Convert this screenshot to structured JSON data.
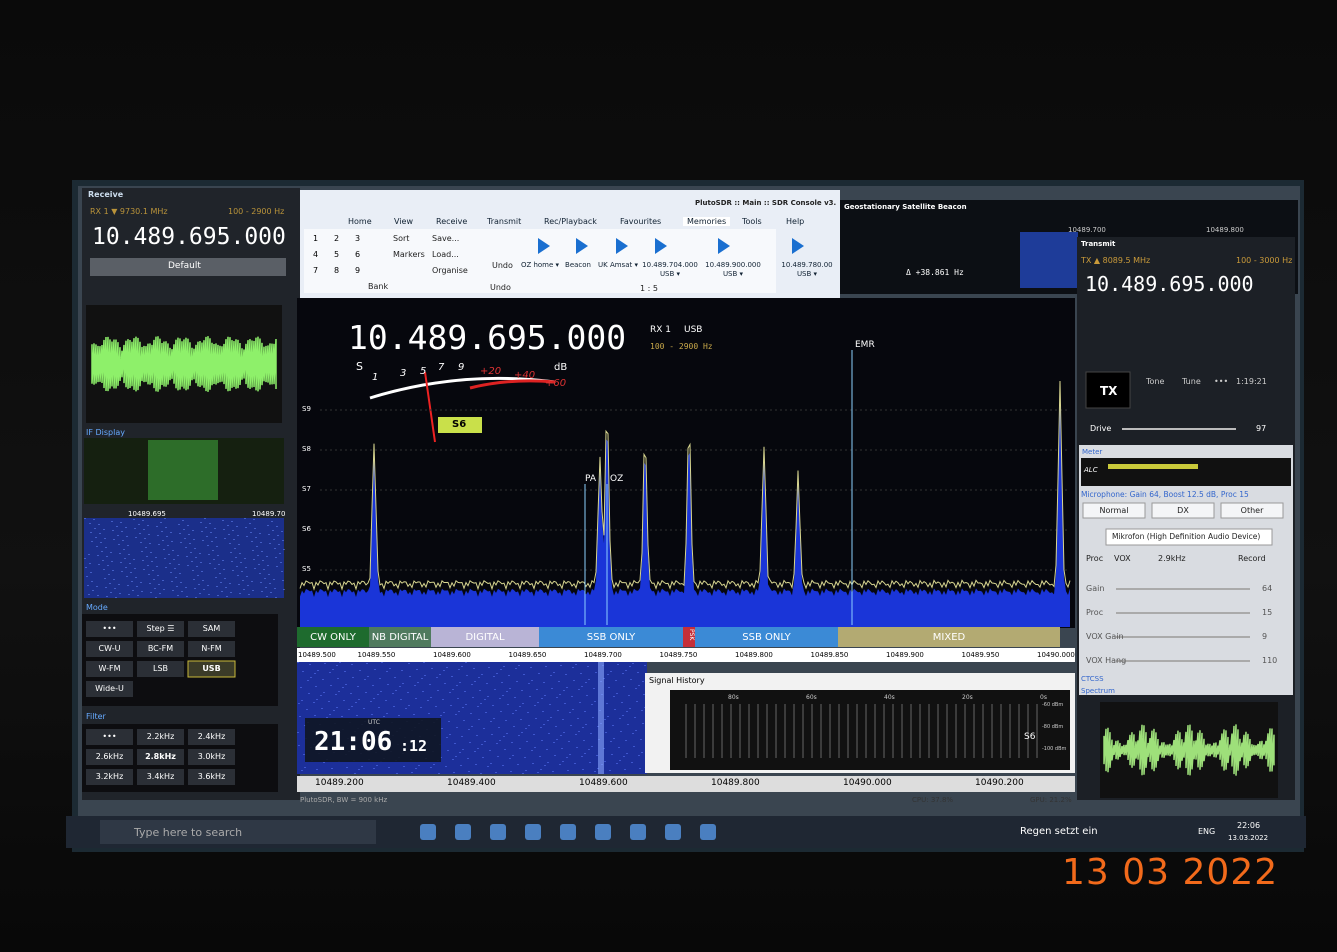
{
  "receive": {
    "title": "Receive",
    "rx": "RX 1 ▼ 9730.1 MHz",
    "bandwidth": "100 - 2900 Hz",
    "frequency": "10.489.695.000",
    "preset": "Default",
    "if_title": "IF Display",
    "if_freqs": [
      "10489.695",
      "10489.70"
    ],
    "mode_title": "Mode",
    "modes": [
      "•••",
      "Step ☰",
      "SAM",
      "CW-U",
      "BC-FM",
      "N-FM",
      "W-FM",
      "LSB",
      "USB",
      "Wide-U"
    ],
    "filter_title": "Filter",
    "filters": [
      "•••",
      "2.2kHz",
      "2.4kHz",
      "2.6kHz",
      "2.8kHz",
      "3.0kHz",
      "3.2kHz",
      "3.4kHz",
      "3.6kHz"
    ]
  },
  "ribbon": {
    "title": "PlutoSDR :: Main :: SDR Console v3.",
    "tabs": [
      "Home",
      "View",
      "Receive",
      "Transmit",
      "Rec/Playback",
      "Favourites",
      "Memories",
      "Tools",
      "Help"
    ],
    "bank_keys": [
      "1",
      "2",
      "3",
      "4",
      "5",
      "6",
      "7",
      "8",
      "9"
    ],
    "sort": "Sort",
    "save": "Save...",
    "markers": "Markers",
    "load": "Load...",
    "organise": "Organise",
    "bank": "Bank",
    "undo_button": "Undo",
    "undo_group": "Undo",
    "memories": [
      "OZ home ▾",
      "Beacon",
      "UK Amsat ▾",
      "10.489.704.000 USB ▾",
      "10.489.900.000 USB ▾",
      "10.489.780.00 USB ▾"
    ],
    "page": "1 : 5"
  },
  "beacon": {
    "title": "Geostationary Satellite Beacon",
    "offset": "Δ +38.861 Hz",
    "freqs": [
      "10489.700",
      "10489.800"
    ]
  },
  "spectrum": {
    "frequency": "10.489.695.000",
    "rx": "RX 1",
    "mode": "USB",
    "bandwidth": "100 - 2900 Hz",
    "meter_unit": "S",
    "meter_scale": [
      "1",
      "3",
      "5",
      "7",
      "9",
      "+20",
      "+40",
      "+60"
    ],
    "meter_db": "dB",
    "reading": "S6",
    "levels": [
      "S9",
      "S8",
      "S7",
      "S6",
      "S5"
    ],
    "markers": [
      "EMR",
      "PA",
      "OZ"
    ],
    "bands": [
      "CW ONLY",
      "NB DIGITAL",
      "DIGITAL",
      "SSB ONLY",
      "PSK",
      "SSB ONLY",
      "MIXED"
    ],
    "axis": [
      "10489.500",
      "10489.550",
      "10489.600",
      "10489.650",
      "10489.700",
      "10489.750",
      "10489.800",
      "10489.850",
      "10489.900",
      "10489.950",
      "10490.000"
    ]
  },
  "waterfall": {
    "utc": "UTC",
    "time": "21:06",
    "seconds": ":12",
    "history_title": "Signal History",
    "history_times": [
      "80s",
      "60s",
      "40s",
      "20s",
      "0s"
    ],
    "history_levels": [
      "-60 dBm",
      "-80 dBm",
      "-100 dBm"
    ],
    "history_reading": "S6",
    "axis": [
      "10489.200",
      "10489.400",
      "10489.600",
      "10489.800",
      "10490.000",
      "10490.200"
    ],
    "status": "PlutoSDR, BW = 900 kHz",
    "cpu": "CPU: 37.8%",
    "gpu": "GPU: 21.2%"
  },
  "transmit": {
    "title": "Transmit",
    "tx": "TX ▲ 8089.5 MHz",
    "bandwidth": "100 - 3000 Hz",
    "frequency": "10.489.695.000",
    "tx_button": "TX",
    "tone": "Tone",
    "tune": "Tune",
    "more": "•••",
    "timer": "1:19:21",
    "drive": "Drive",
    "drive_value": "97",
    "meter_title": "Meter",
    "alc": "ALC",
    "microphone": "Microphone: Gain 64, Boost 12.5 dB, Proc 15",
    "profiles": [
      "Normal",
      "DX",
      "Other"
    ],
    "device": "Mikrofon (High Definition Audio Device)",
    "proc": "Proc",
    "vox": "VOX",
    "filter": "2.9kHz",
    "record": "Record",
    "sliders": [
      {
        "label": "Gain",
        "value": "64"
      },
      {
        "label": "Proc",
        "value": "15"
      },
      {
        "label": "VOX Gain",
        "value": "9"
      },
      {
        "label": "VOX Hang",
        "value": "110"
      }
    ],
    "ctcss": "CTCSS",
    "spectrum": "Spectrum"
  },
  "taskbar": {
    "search": "Type here to search",
    "weather": "Regen setzt ein",
    "language": "ENG",
    "time": "22:06",
    "date": "13.03.2022"
  },
  "photo_date": "13 03 2022"
}
